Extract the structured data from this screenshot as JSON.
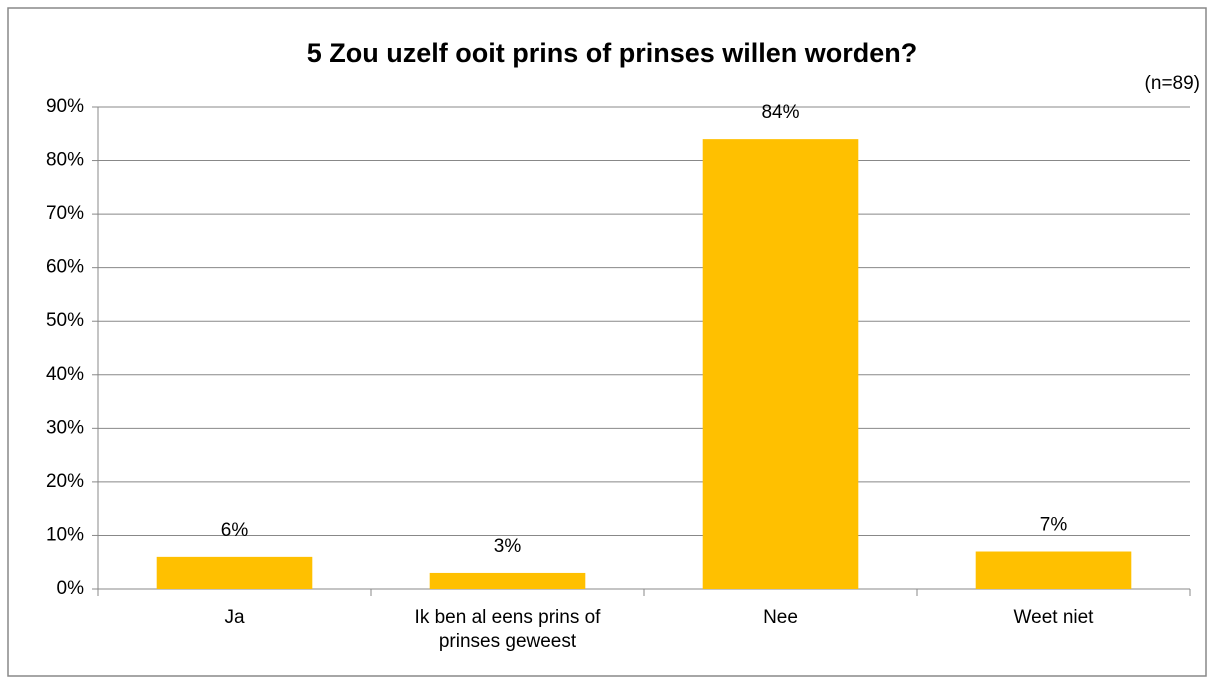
{
  "chart_data": {
    "type": "bar",
    "title": "5 Zou uzelf ooit prins of prinses willen worden?",
    "annotation": "(n=89)",
    "categories": [
      "Ja",
      "Ik ben al eens prins of prinses geweest",
      "Nee",
      "Weet niet"
    ],
    "values": [
      6,
      3,
      84,
      7
    ],
    "value_labels": [
      "6%",
      "3%",
      "84%",
      "7%"
    ],
    "color": "#ffc000",
    "ylim": [
      0,
      90
    ],
    "yticks": [
      {
        "value": 0,
        "label": "0%"
      },
      {
        "value": 10,
        "label": "10%"
      },
      {
        "value": 20,
        "label": "20%"
      },
      {
        "value": 30,
        "label": "30%"
      },
      {
        "value": 40,
        "label": "40%"
      },
      {
        "value": 50,
        "label": "50%"
      },
      {
        "value": 60,
        "label": "60%"
      },
      {
        "value": 70,
        "label": "70%"
      },
      {
        "value": 80,
        "label": "80%"
      },
      {
        "value": 90,
        "label": "90%"
      }
    ],
    "grid": true
  }
}
